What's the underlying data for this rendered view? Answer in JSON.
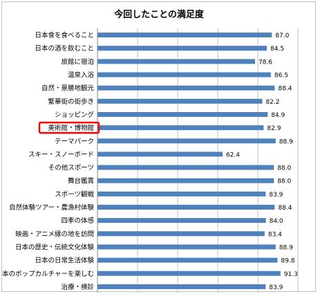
{
  "chart_data": {
    "type": "bar",
    "orientation": "horizontal",
    "title": "今回したことの満足度",
    "categories": [
      "日本食を食べること",
      "日本の酒を飲むこと",
      "旅館に宿泊",
      "温泉入浴",
      "自然・景勝地観光",
      "繁華街の街歩き",
      "ショッピング",
      "美術館・博物館",
      "テーマパーク",
      "スキー・スノーボード",
      "その他スポーツ",
      "舞台鑑賞",
      "スポーツ観戦",
      "自然体験ツアー・農漁村体験",
      "四季の体感",
      "映画・アニメ縁の地を訪問",
      "日本の歴史・伝統文化体験",
      "日本の日常生活体験",
      "日本のポップカルチャーを楽しむ",
      "治療・検診"
    ],
    "values": [
      87.0,
      84.5,
      78.6,
      86.5,
      88.4,
      82.2,
      84.9,
      82.9,
      88.9,
      62.4,
      88.0,
      88.0,
      83.9,
      88.4,
      84.0,
      83.4,
      88.9,
      89.8,
      91.3,
      83.9
    ],
    "value_labels": [
      "87.0",
      "84.5",
      "78.6",
      "86.5",
      "88.4",
      "82.2",
      "84.9",
      "82.9",
      "88.9",
      "62.4",
      "88.0",
      "88.0",
      "83.9",
      "88.4",
      "84.0",
      "83.4",
      "88.9",
      "89.8",
      "91.3",
      "83.9"
    ],
    "xlim": [
      0,
      100
    ],
    "ticks": [
      "0.0",
      "20.0",
      "40.0",
      "60.0",
      "80.0",
      "100.0"
    ],
    "tick_values": [
      0,
      20,
      40,
      60,
      80,
      100
    ],
    "grid": true,
    "highlighted_category": "美術館・博物館",
    "colors": {
      "bar": "#4f81bd",
      "grid": "#bfbfbf",
      "highlight": "#ff0000"
    }
  }
}
